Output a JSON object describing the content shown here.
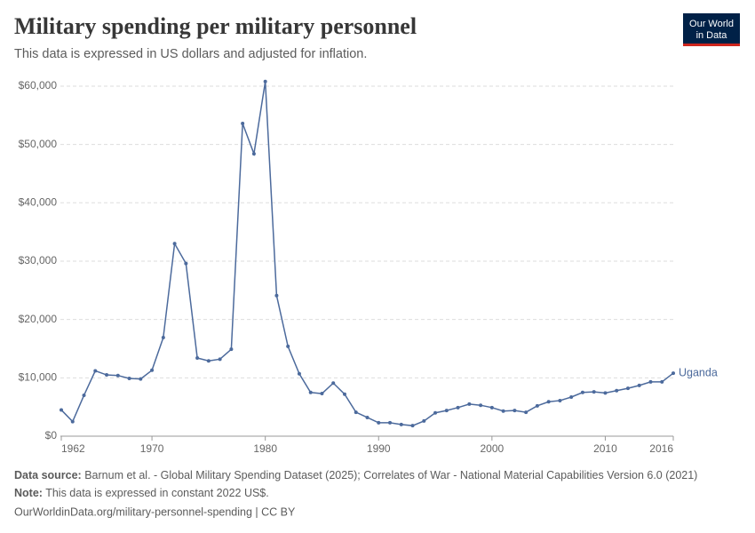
{
  "chart_data": {
    "type": "line",
    "title": "Military spending per military personnel",
    "subtitle": "This data is expressed in US dollars and adjusted for inflation.",
    "x": [
      1962,
      1963,
      1964,
      1965,
      1966,
      1967,
      1968,
      1969,
      1970,
      1971,
      1972,
      1973,
      1974,
      1975,
      1976,
      1977,
      1978,
      1979,
      1980,
      1981,
      1982,
      1983,
      1984,
      1985,
      1986,
      1987,
      1988,
      1989,
      1990,
      1991,
      1992,
      1993,
      1994,
      1995,
      1996,
      1997,
      1998,
      1999,
      2000,
      2001,
      2002,
      2003,
      2004,
      2005,
      2006,
      2007,
      2008,
      2009,
      2010,
      2011,
      2012,
      2013,
      2014,
      2015,
      2016
    ],
    "series": [
      {
        "name": "Uganda",
        "color": "#4c6a9c",
        "values": [
          4500,
          2500,
          7000,
          11200,
          10500,
          10400,
          9900,
          9800,
          11300,
          16900,
          33000,
          29600,
          13400,
          12900,
          13200,
          14900,
          53600,
          48400,
          60800,
          24100,
          15400,
          10700,
          7500,
          7300,
          9100,
          7200,
          4100,
          3200,
          2300,
          2300,
          2000,
          1800,
          2600,
          4000,
          4400,
          4900,
          5500,
          5300,
          4900,
          4300,
          4400,
          4100,
          5200,
          5900,
          6100,
          6700,
          7500,
          7600,
          7400,
          7800,
          8200,
          8700,
          9300,
          9300,
          10800
        ]
      }
    ],
    "xlim": [
      1962,
      2016
    ],
    "xticks": [
      1962,
      1970,
      1980,
      1990,
      2000,
      2010,
      2016
    ],
    "ylim": [
      0,
      61000
    ],
    "yticks": [
      {
        "value": 0,
        "label": "$0"
      },
      {
        "value": 10000,
        "label": "$10,000"
      },
      {
        "value": 20000,
        "label": "$20,000"
      },
      {
        "value": 30000,
        "label": "$30,000"
      },
      {
        "value": 40000,
        "label": "$40,000"
      },
      {
        "value": 50000,
        "label": "$50,000"
      },
      {
        "value": 60000,
        "label": "$60,000"
      }
    ],
    "grid": true
  },
  "logo": {
    "line1": "Our World",
    "line2": "in Data"
  },
  "footer": {
    "source_label": "Data source:",
    "source": "Barnum et al. - Global Military Spending Dataset (2025); Correlates of War - National Material Capabilities Version 6.0 (2021)",
    "note_label": "Note:",
    "note": "This data is expressed in constant 2022 US$.",
    "url": "OurWorldinData.org/military-personnel-spending | CC BY"
  }
}
